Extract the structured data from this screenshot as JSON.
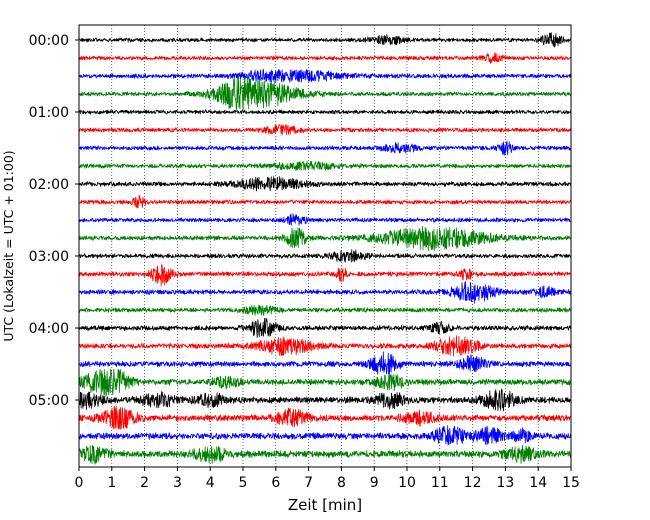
{
  "chart_data": {
    "type": "line",
    "title": "",
    "xlabel": "Zeit  [min]",
    "ylabel": "UTC (Lokalzeit = UTC + 01:00)",
    "xlim": [
      0,
      15
    ],
    "x_ticks": [
      0,
      1,
      2,
      3,
      4,
      5,
      6,
      7,
      8,
      9,
      10,
      11,
      12,
      13,
      14,
      15
    ],
    "y_tick_labels": [
      "00:00",
      "01:00",
      "02:00",
      "03:00",
      "04:00",
      "05:00"
    ],
    "grid": "vertical dotted lines at each minute",
    "trace_colors": [
      "#000000",
      "#ff0000",
      "#0000ff",
      "#008000"
    ],
    "traces": [
      {
        "start": "00:00",
        "color": "#000000",
        "noise": 2.2,
        "events": [
          [
            9.4,
            0.5,
            4
          ],
          [
            14.4,
            0.3,
            6
          ]
        ]
      },
      {
        "start": "00:15",
        "color": "#ff0000",
        "noise": 2.2,
        "events": [
          [
            12.6,
            0.3,
            4
          ]
        ]
      },
      {
        "start": "00:30",
        "color": "#0000ff",
        "noise": 2.4,
        "events": [
          [
            6.8,
            1.2,
            5
          ],
          [
            5.5,
            0.6,
            3
          ]
        ]
      },
      {
        "start": "00:45",
        "color": "#008000",
        "noise": 2.2,
        "events": [
          [
            5.4,
            1.2,
            13
          ],
          [
            4.8,
            0.5,
            6
          ]
        ]
      },
      {
        "start": "01:00",
        "color": "#000000",
        "noise": 2.2,
        "events": []
      },
      {
        "start": "01:15",
        "color": "#ff0000",
        "noise": 2.3,
        "events": [
          [
            6.2,
            0.5,
            4
          ]
        ]
      },
      {
        "start": "01:30",
        "color": "#0000ff",
        "noise": 2.3,
        "events": [
          [
            9.8,
            0.5,
            4
          ],
          [
            13.0,
            0.2,
            7
          ]
        ]
      },
      {
        "start": "01:45",
        "color": "#008000",
        "noise": 2.3,
        "events": [
          [
            7.0,
            1.0,
            3
          ]
        ]
      },
      {
        "start": "02:00",
        "color": "#000000",
        "noise": 2.4,
        "events": [
          [
            5.8,
            1.0,
            6
          ]
        ]
      },
      {
        "start": "02:15",
        "color": "#ff0000",
        "noise": 2.3,
        "events": [
          [
            1.8,
            0.2,
            5
          ]
        ]
      },
      {
        "start": "02:30",
        "color": "#0000ff",
        "noise": 2.3,
        "events": [
          [
            6.6,
            0.3,
            5
          ]
        ]
      },
      {
        "start": "02:45",
        "color": "#008000",
        "noise": 2.5,
        "events": [
          [
            6.6,
            0.3,
            10
          ],
          [
            10.8,
            1.5,
            11
          ]
        ]
      },
      {
        "start": "03:00",
        "color": "#000000",
        "noise": 2.4,
        "events": [
          [
            8.2,
            0.5,
            5
          ]
        ]
      },
      {
        "start": "03:15",
        "color": "#ff0000",
        "noise": 2.6,
        "events": [
          [
            2.5,
            0.3,
            10
          ],
          [
            8.0,
            0.15,
            7
          ],
          [
            11.8,
            0.15,
            7
          ]
        ]
      },
      {
        "start": "03:30",
        "color": "#0000ff",
        "noise": 2.6,
        "events": [
          [
            12.0,
            0.6,
            10
          ],
          [
            14.2,
            0.3,
            5
          ]
        ]
      },
      {
        "start": "03:45",
        "color": "#008000",
        "noise": 2.4,
        "events": [
          [
            5.5,
            0.5,
            4
          ]
        ]
      },
      {
        "start": "04:00",
        "color": "#000000",
        "noise": 2.6,
        "events": [
          [
            5.6,
            0.4,
            9
          ],
          [
            11.0,
            0.3,
            5
          ]
        ]
      },
      {
        "start": "04:15",
        "color": "#ff0000",
        "noise": 2.8,
        "events": [
          [
            6.3,
            0.8,
            8
          ],
          [
            11.5,
            0.6,
            9
          ]
        ]
      },
      {
        "start": "04:30",
        "color": "#0000ff",
        "noise": 3.0,
        "events": [
          [
            9.3,
            0.4,
            10
          ],
          [
            12.0,
            0.4,
            7
          ]
        ]
      },
      {
        "start": "04:45",
        "color": "#008000",
        "noise": 3.3,
        "events": [
          [
            0.6,
            0.5,
            10
          ],
          [
            1.2,
            0.4,
            9
          ],
          [
            4.5,
            0.4,
            5
          ],
          [
            9.5,
            0.4,
            7
          ]
        ]
      },
      {
        "start": "05:00",
        "color": "#000000",
        "noise": 3.4,
        "events": [
          [
            0.3,
            0.4,
            8
          ],
          [
            2.4,
            0.5,
            6
          ],
          [
            4.0,
            0.4,
            6
          ],
          [
            9.5,
            0.4,
            8
          ],
          [
            12.8,
            0.5,
            9
          ]
        ]
      },
      {
        "start": "05:15",
        "color": "#ff0000",
        "noise": 3.4,
        "events": [
          [
            1.2,
            0.5,
            10
          ],
          [
            6.5,
            0.5,
            7
          ],
          [
            10.4,
            0.5,
            6
          ]
        ]
      },
      {
        "start": "05:30",
        "color": "#0000ff",
        "noise": 3.5,
        "events": [
          [
            11.3,
            0.5,
            8
          ],
          [
            12.5,
            0.4,
            7
          ],
          [
            13.5,
            0.3,
            5
          ]
        ]
      },
      {
        "start": "05:45",
        "color": "#008000",
        "noise": 3.8,
        "events": [
          [
            0.4,
            0.4,
            7
          ],
          [
            4.0,
            0.5,
            6
          ],
          [
            13.5,
            0.5,
            6
          ]
        ]
      }
    ]
  }
}
